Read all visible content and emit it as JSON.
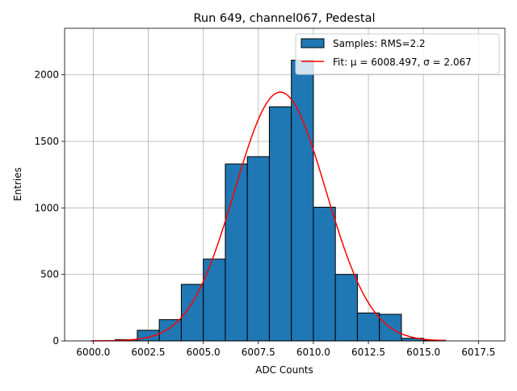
{
  "chart_data": {
    "type": "bar",
    "subtype": "histogram",
    "title": "Run 649, channel067, Pedestal",
    "xlabel": "ADC Counts",
    "ylabel": "Entries",
    "xlim": [
      5998.7,
      6018.7
    ],
    "ylim": [
      0,
      2350
    ],
    "grid": true,
    "legend_position": "top-right",
    "xticks": [
      6000.0,
      6002.5,
      6005.0,
      6007.5,
      6010.0,
      6012.5,
      6015.0,
      6017.5
    ],
    "xtick_labels": [
      "6000.0",
      "6002.5",
      "6005.0",
      "6007.5",
      "6010.0",
      "6012.5",
      "6015.0",
      "6017.5"
    ],
    "yticks": [
      0,
      500,
      1000,
      1500,
      2000
    ],
    "ytick_labels": [
      "0",
      "500",
      "1000",
      "1500",
      "2000"
    ],
    "histogram": {
      "name": "Samples: RMS=2.2",
      "color": "#1f77b4",
      "edge_color": "#000000",
      "bins": [
        {
          "x0": 6001.0,
          "x1": 6002.0,
          "count": 10
        },
        {
          "x0": 6002.0,
          "x1": 6003.0,
          "count": 80
        },
        {
          "x0": 6003.0,
          "x1": 6004.0,
          "count": 160
        },
        {
          "x0": 6004.0,
          "x1": 6005.0,
          "count": 425
        },
        {
          "x0": 6005.0,
          "x1": 6006.0,
          "count": 615
        },
        {
          "x0": 6006.0,
          "x1": 6007.0,
          "count": 1330
        },
        {
          "x0": 6007.0,
          "x1": 6008.0,
          "count": 1385
        },
        {
          "x0": 6008.0,
          "x1": 6009.0,
          "count": 1760
        },
        {
          "x0": 6009.0,
          "x1": 6010.0,
          "count": 2110
        },
        {
          "x0": 6010.0,
          "x1": 6011.0,
          "count": 1005
        },
        {
          "x0": 6011.0,
          "x1": 6012.0,
          "count": 500
        },
        {
          "x0": 6012.0,
          "x1": 6013.0,
          "count": 210
        },
        {
          "x0": 6013.0,
          "x1": 6014.0,
          "count": 200
        },
        {
          "x0": 6014.0,
          "x1": 6015.0,
          "count": 20
        },
        {
          "x0": 6015.0,
          "x1": 6016.0,
          "count": 5
        }
      ]
    },
    "fit": {
      "name": "Fit: μ = 6008.497, σ = 2.067",
      "color": "#ff0000",
      "mu": 6008.497,
      "sigma": 2.067,
      "amplitude": 1870,
      "x_range": [
        5999.9,
        6016.0
      ]
    }
  }
}
